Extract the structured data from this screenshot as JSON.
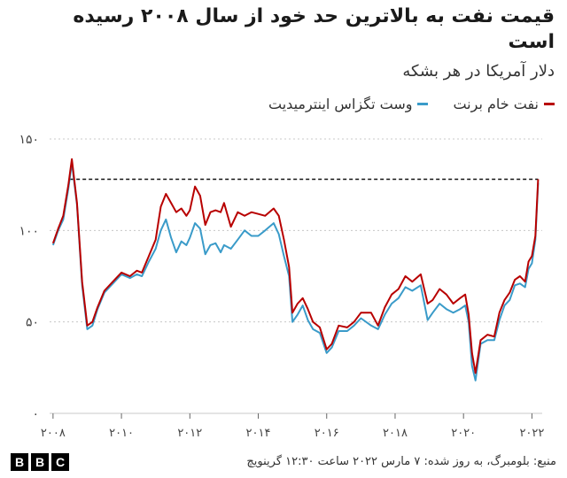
{
  "header": {
    "title": "قیمت نفت به بالاترین حد خود از سال ۲۰۰۸ رسیده است",
    "subtitle": "دلار آمریکا در هر بشکه"
  },
  "footer": {
    "source": "منبع: بلومبرگ، به روز شده: ۷ مارس ۲۰۲۲ ساعت ۱۲:۳۰ گرینویچ",
    "logo_letters": [
      "B",
      "B",
      "C"
    ]
  },
  "chart_data": {
    "type": "line",
    "xlim": [
      2007.9,
      2022.3
    ],
    "ylim": [
      0,
      150
    ],
    "yticks": [
      0,
      50,
      100,
      150
    ],
    "ytick_labels": [
      "۰",
      "۵۰",
      "۱۰۰",
      "۱۵۰"
    ],
    "xticks": [
      2008,
      2010,
      2012,
      2014,
      2016,
      2018,
      2020,
      2022
    ],
    "xtick_labels": [
      "۲۰۰۸",
      "۲۰۱۰",
      "۲۰۱۲",
      "۲۰۱۴",
      "۲۰۱۶",
      "۲۰۱۸",
      "۲۰۲۰",
      "۲۰۲۲"
    ],
    "grid": true,
    "legend_position": "top-right",
    "reference_line": {
      "y": 128,
      "x_start": 2008.5,
      "x_end": 2022.18,
      "style": "dashed"
    },
    "series": [
      {
        "name": "نفت خام برنت",
        "color": "#b80000",
        "x": [
          2008.0,
          2008.15,
          2008.3,
          2008.45,
          2008.55,
          2008.7,
          2008.85,
          2009.0,
          2009.15,
          2009.3,
          2009.5,
          2009.75,
          2010.0,
          2010.25,
          2010.45,
          2010.6,
          2010.8,
          2011.0,
          2011.15,
          2011.3,
          2011.45,
          2011.6,
          2011.75,
          2011.9,
          2012.0,
          2012.15,
          2012.3,
          2012.45,
          2012.6,
          2012.75,
          2012.9,
          2013.0,
          2013.2,
          2013.4,
          2013.6,
          2013.8,
          2014.0,
          2014.2,
          2014.45,
          2014.6,
          2014.75,
          2014.9,
          2015.0,
          2015.15,
          2015.3,
          2015.45,
          2015.6,
          2015.8,
          2016.0,
          2016.15,
          2016.35,
          2016.6,
          2016.8,
          2017.0,
          2017.3,
          2017.5,
          2017.7,
          2017.9,
          2018.1,
          2018.3,
          2018.5,
          2018.75,
          2018.95,
          2019.1,
          2019.3,
          2019.5,
          2019.7,
          2019.9,
          2020.05,
          2020.15,
          2020.25,
          2020.35,
          2020.5,
          2020.7,
          2020.9,
          2021.05,
          2021.2,
          2021.35,
          2021.5,
          2021.65,
          2021.8,
          2021.9,
          2022.0,
          2022.1,
          2022.18
        ],
        "values": [
          93,
          101,
          108,
          125,
          139,
          115,
          72,
          48,
          50,
          58,
          67,
          72,
          77,
          75,
          78,
          77,
          86,
          95,
          113,
          120,
          115,
          110,
          112,
          108,
          111,
          124,
          119,
          103,
          110,
          111,
          110,
          115,
          102,
          110,
          108,
          110,
          109,
          108,
          112,
          108,
          95,
          80,
          55,
          60,
          63,
          57,
          50,
          47,
          35,
          38,
          48,
          47,
          50,
          55,
          55,
          48,
          58,
          65,
          68,
          75,
          72,
          76,
          60,
          62,
          68,
          65,
          60,
          63,
          65,
          54,
          33,
          22,
          40,
          43,
          42,
          55,
          62,
          66,
          73,
          75,
          72,
          83,
          86,
          97,
          128
        ]
      },
      {
        "name": "وست تگزاس اینترمیدیت",
        "color": "#3a9bc9",
        "x": [
          2008.0,
          2008.15,
          2008.3,
          2008.45,
          2008.55,
          2008.7,
          2008.85,
          2009.0,
          2009.15,
          2009.3,
          2009.5,
          2009.75,
          2010.0,
          2010.25,
          2010.45,
          2010.6,
          2010.8,
          2011.0,
          2011.15,
          2011.3,
          2011.45,
          2011.6,
          2011.75,
          2011.9,
          2012.0,
          2012.15,
          2012.3,
          2012.45,
          2012.6,
          2012.75,
          2012.9,
          2013.0,
          2013.2,
          2013.4,
          2013.6,
          2013.8,
          2014.0,
          2014.2,
          2014.45,
          2014.6,
          2014.75,
          2014.9,
          2015.0,
          2015.15,
          2015.3,
          2015.45,
          2015.6,
          2015.8,
          2016.0,
          2016.15,
          2016.35,
          2016.6,
          2016.8,
          2017.0,
          2017.3,
          2017.5,
          2017.7,
          2017.9,
          2018.1,
          2018.3,
          2018.5,
          2018.75,
          2018.95,
          2019.1,
          2019.3,
          2019.5,
          2019.7,
          2019.9,
          2020.05,
          2020.15,
          2020.25,
          2020.35,
          2020.5,
          2020.7,
          2020.9,
          2021.05,
          2021.2,
          2021.35,
          2021.5,
          2021.65,
          2021.8,
          2021.9,
          2022.0,
          2022.1,
          2022.18
        ],
        "values": [
          92,
          100,
          106,
          123,
          137,
          114,
          70,
          46,
          48,
          57,
          66,
          71,
          76,
          74,
          76,
          75,
          83,
          90,
          100,
          106,
          96,
          88,
          94,
          92,
          96,
          104,
          101,
          87,
          92,
          93,
          88,
          92,
          90,
          95,
          100,
          97,
          97,
          100,
          104,
          98,
          86,
          75,
          50,
          54,
          59,
          51,
          46,
          44,
          33,
          36,
          45,
          45,
          48,
          52,
          48,
          46,
          54,
          60,
          63,
          69,
          67,
          70,
          51,
          55,
          60,
          57,
          55,
          57,
          59,
          50,
          26,
          18,
          38,
          40,
          40,
          51,
          59,
          62,
          70,
          71,
          69,
          79,
          82,
          95,
          126
        ]
      }
    ]
  }
}
